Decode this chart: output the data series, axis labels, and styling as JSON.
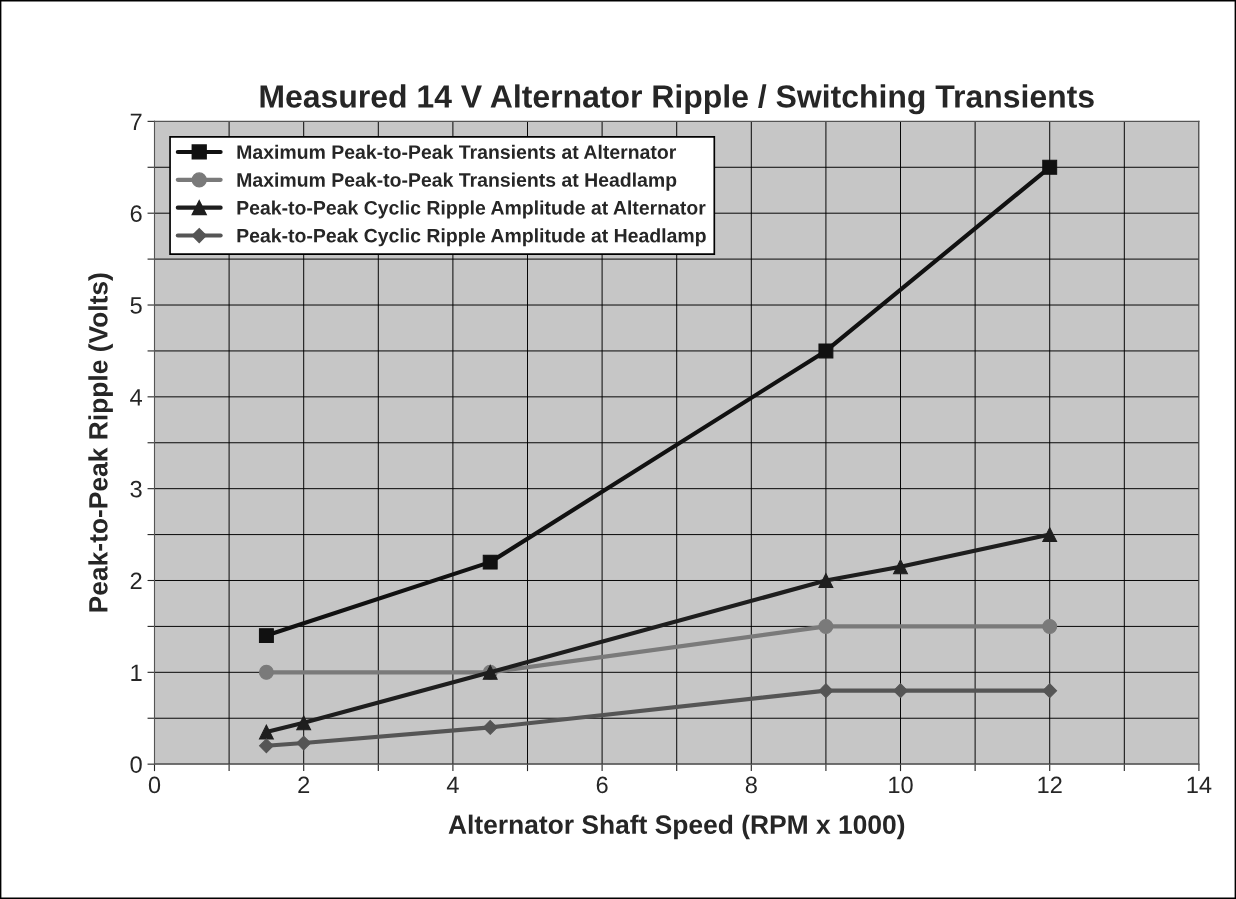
{
  "chart_data": {
    "type": "line",
    "title": "Measured 14 V Alternator Ripple / Switching Transients",
    "xlabel": "Alternator Shaft Speed (RPM x 1000)",
    "ylabel": "Peak-to-Peak Ripple (Volts)",
    "xlim": [
      0,
      14
    ],
    "ylim": [
      0,
      7
    ],
    "xticks": [
      0,
      {
        "value": 1,
        "label": null
      },
      2,
      {
        "value": 3,
        "label": null
      },
      4,
      {
        "value": 5,
        "label": null
      },
      6,
      {
        "value": 7,
        "label": null
      },
      8,
      {
        "value": 9,
        "label": null
      },
      10,
      {
        "value": 11,
        "label": null
      },
      12,
      {
        "value": 13,
        "label": null
      },
      14
    ],
    "yticks": [
      0,
      {
        "value": 0.5,
        "label": null
      },
      1,
      {
        "value": 1.5,
        "label": null
      },
      2,
      {
        "value": 2.5,
        "label": null
      },
      3,
      {
        "value": 3.5,
        "label": null
      },
      4,
      {
        "value": 4.5,
        "label": null
      },
      5,
      {
        "value": 5.5,
        "label": null
      },
      6,
      {
        "value": 6.5,
        "label": null
      },
      7
    ],
    "grid": true,
    "legend": "top left",
    "line_style": "solid",
    "series": [
      {
        "name": "Maximum Peak-to-Peak Transients at Alternator",
        "color": "#111111",
        "marker": "square",
        "x": [
          1.5,
          4.5,
          9,
          12
        ],
        "values": [
          1.4,
          2.2,
          4.5,
          6.5
        ]
      },
      {
        "name": "Maximum Peak-to-Peak Transients at Headlamp",
        "color": "#7a7a7a",
        "marker": "circle",
        "x": [
          1.5,
          4.5,
          9,
          12
        ],
        "values": [
          1.0,
          1.0,
          1.5,
          1.5
        ]
      },
      {
        "name": "Peak-to-Peak Cyclic Ripple Amplitude at Alternator",
        "color": "#1e1e1e",
        "marker": "triangle",
        "x": [
          1.5,
          2,
          4.5,
          9,
          10,
          12
        ],
        "values": [
          0.35,
          0.45,
          1.0,
          2.0,
          2.15,
          2.5
        ]
      },
      {
        "name": "Peak-to-Peak Cyclic Ripple Amplitude at Headlamp",
        "color": "#555555",
        "marker": "diamond",
        "x": [
          1.5,
          2,
          4.5,
          9,
          10,
          12
        ],
        "values": [
          0.2,
          0.23,
          0.4,
          0.8,
          0.8,
          0.8
        ]
      }
    ]
  }
}
